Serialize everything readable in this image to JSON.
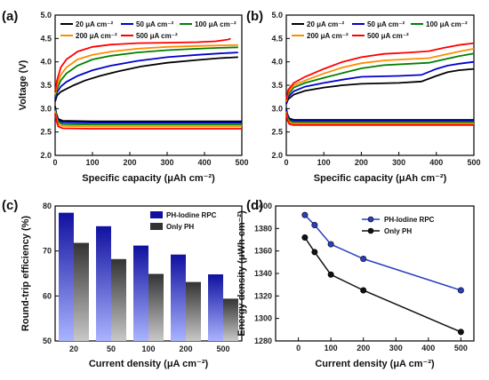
{
  "chart_data": [
    {
      "panel": "(a)",
      "type": "line",
      "xlabel": "Specific capacity (μAh cm⁻²)",
      "ylabel": "Voltage (V)",
      "xlim": [
        0,
        500
      ],
      "ylim": [
        2.0,
        5.0
      ],
      "xticks": [
        "0",
        "100",
        "200",
        "300",
        "400",
        "500"
      ],
      "yticks": [
        "2.0",
        "2.5",
        "3.0",
        "3.5",
        "4.0",
        "4.5",
        "5.0"
      ],
      "legend_placement": "top",
      "series": [
        {
          "name": "20 μA cm⁻²",
          "color": "#000000",
          "charge": [
            [
              0,
              3.15
            ],
            [
              5,
              3.28
            ],
            [
              15,
              3.36
            ],
            [
              30,
              3.42
            ],
            [
              50,
              3.5
            ],
            [
              80,
              3.6
            ],
            [
              120,
              3.7
            ],
            [
              170,
              3.8
            ],
            [
              230,
              3.9
            ],
            [
              300,
              3.98
            ],
            [
              380,
              4.04
            ],
            [
              440,
              4.08
            ],
            [
              490,
              4.1
            ]
          ],
          "discharge": [
            [
              0,
              3.05
            ],
            [
              3,
              2.9
            ],
            [
              8,
              2.78
            ],
            [
              20,
              2.74
            ],
            [
              100,
              2.73
            ],
            [
              300,
              2.73
            ],
            [
              500,
              2.73
            ]
          ]
        },
        {
          "name": "50 μA cm⁻²",
          "color": "#0000cc",
          "charge": [
            [
              0,
              3.2
            ],
            [
              5,
              3.35
            ],
            [
              15,
              3.47
            ],
            [
              30,
              3.57
            ],
            [
              60,
              3.7
            ],
            [
              100,
              3.82
            ],
            [
              150,
              3.92
            ],
            [
              220,
              4.02
            ],
            [
              300,
              4.1
            ],
            [
              380,
              4.15
            ],
            [
              440,
              4.18
            ],
            [
              490,
              4.2
            ]
          ],
          "discharge": [
            [
              0,
              3.0
            ],
            [
              3,
              2.88
            ],
            [
              8,
              2.75
            ],
            [
              20,
              2.71
            ],
            [
              100,
              2.7
            ],
            [
              300,
              2.7
            ],
            [
              500,
              2.7
            ]
          ]
        },
        {
          "name": "100 μA cm⁻²",
          "color": "#008000",
          "charge": [
            [
              0,
              3.25
            ],
            [
              5,
              3.42
            ],
            [
              15,
              3.6
            ],
            [
              30,
              3.75
            ],
            [
              60,
              3.92
            ],
            [
              100,
              4.05
            ],
            [
              150,
              4.13
            ],
            [
              220,
              4.2
            ],
            [
              300,
              4.25
            ],
            [
              380,
              4.28
            ],
            [
              440,
              4.3
            ],
            [
              490,
              4.31
            ]
          ],
          "discharge": [
            [
              0,
              2.98
            ],
            [
              3,
              2.85
            ],
            [
              8,
              2.72
            ],
            [
              20,
              2.67
            ],
            [
              100,
              2.66
            ],
            [
              300,
              2.66
            ],
            [
              500,
              2.66
            ]
          ]
        },
        {
          "name": "200 μA cm⁻²",
          "color": "#ff8c00",
          "charge": [
            [
              0,
              3.3
            ],
            [
              5,
              3.5
            ],
            [
              15,
              3.72
            ],
            [
              30,
              3.88
            ],
            [
              60,
              4.05
            ],
            [
              100,
              4.15
            ],
            [
              150,
              4.22
            ],
            [
              220,
              4.28
            ],
            [
              300,
              4.32
            ],
            [
              380,
              4.34
            ],
            [
              440,
              4.35
            ],
            [
              490,
              4.36
            ]
          ],
          "discharge": [
            [
              0,
              2.95
            ],
            [
              3,
              2.8
            ],
            [
              8,
              2.67
            ],
            [
              20,
              2.63
            ],
            [
              100,
              2.62
            ],
            [
              300,
              2.62
            ],
            [
              500,
              2.62
            ]
          ]
        },
        {
          "name": "500 μA cm⁻²",
          "color": "#ff0000",
          "charge": [
            [
              0,
              3.35
            ],
            [
              5,
              3.6
            ],
            [
              15,
              3.88
            ],
            [
              30,
              4.05
            ],
            [
              60,
              4.22
            ],
            [
              100,
              4.32
            ],
            [
              150,
              4.37
            ],
            [
              220,
              4.4
            ],
            [
              300,
              4.41
            ],
            [
              380,
              4.42
            ],
            [
              430,
              4.44
            ],
            [
              465,
              4.48
            ],
            [
              470,
              4.5
            ]
          ],
          "discharge": [
            [
              0,
              2.9
            ],
            [
              3,
              2.75
            ],
            [
              8,
              2.62
            ],
            [
              20,
              2.58
            ],
            [
              100,
              2.57
            ],
            [
              300,
              2.57
            ],
            [
              500,
              2.57
            ]
          ]
        }
      ]
    },
    {
      "panel": "(b)",
      "type": "line",
      "xlabel": "Specific capacity (μAh cm⁻²)",
      "ylabel": "",
      "xlim": [
        0,
        500
      ],
      "ylim": [
        2.0,
        5.0
      ],
      "xticks": [
        "0",
        "100",
        "200",
        "300",
        "400",
        "500"
      ],
      "yticks": [
        "2.0",
        "2.5",
        "3.0",
        "3.5",
        "4.0",
        "4.5",
        "5.0"
      ],
      "legend_placement": "top",
      "series": [
        {
          "name": "20 μA cm⁻²",
          "color": "#000000",
          "charge": [
            [
              0,
              3.1
            ],
            [
              5,
              3.2
            ],
            [
              20,
              3.3
            ],
            [
              50,
              3.38
            ],
            [
              100,
              3.45
            ],
            [
              150,
              3.5
            ],
            [
              200,
              3.53
            ],
            [
              300,
              3.55
            ],
            [
              360,
              3.58
            ],
            [
              400,
              3.7
            ],
            [
              430,
              3.78
            ],
            [
              460,
              3.82
            ],
            [
              500,
              3.85
            ]
          ],
          "discharge": [
            [
              0,
              3.0
            ],
            [
              3,
              2.88
            ],
            [
              8,
              2.79
            ],
            [
              20,
              2.76
            ],
            [
              100,
              2.76
            ],
            [
              300,
              2.76
            ],
            [
              500,
              2.76
            ]
          ]
        },
        {
          "name": "50 μA cm⁻²",
          "color": "#0000cc",
          "charge": [
            [
              0,
              3.12
            ],
            [
              5,
              3.25
            ],
            [
              20,
              3.37
            ],
            [
              50,
              3.47
            ],
            [
              100,
              3.55
            ],
            [
              150,
              3.62
            ],
            [
              200,
              3.68
            ],
            [
              300,
              3.7
            ],
            [
              360,
              3.72
            ],
            [
              400,
              3.85
            ],
            [
              430,
              3.92
            ],
            [
              460,
              3.96
            ],
            [
              500,
              4.0
            ]
          ],
          "discharge": [
            [
              0,
              2.98
            ],
            [
              3,
              2.85
            ],
            [
              8,
              2.77
            ],
            [
              20,
              2.74
            ],
            [
              100,
              2.74
            ],
            [
              300,
              2.74
            ],
            [
              500,
              2.74
            ]
          ]
        },
        {
          "name": "100 μA cm⁻²",
          "color": "#008000",
          "charge": [
            [
              0,
              3.14
            ],
            [
              5,
              3.3
            ],
            [
              20,
              3.45
            ],
            [
              50,
              3.55
            ],
            [
              100,
              3.66
            ],
            [
              150,
              3.76
            ],
            [
              200,
              3.86
            ],
            [
              260,
              3.93
            ],
            [
              330,
              3.96
            ],
            [
              380,
              3.98
            ],
            [
              420,
              4.05
            ],
            [
              460,
              4.12
            ],
            [
              500,
              4.18
            ]
          ],
          "discharge": [
            [
              0,
              2.95
            ],
            [
              3,
              2.82
            ],
            [
              8,
              2.74
            ],
            [
              20,
              2.71
            ],
            [
              100,
              2.71
            ],
            [
              300,
              2.71
            ],
            [
              500,
              2.71
            ]
          ]
        },
        {
          "name": "200 μA cm⁻²",
          "color": "#ff8c00",
          "charge": [
            [
              0,
              3.16
            ],
            [
              5,
              3.35
            ],
            [
              20,
              3.5
            ],
            [
              50,
              3.6
            ],
            [
              100,
              3.75
            ],
            [
              150,
              3.88
            ],
            [
              200,
              3.97
            ],
            [
              260,
              4.03
            ],
            [
              330,
              4.06
            ],
            [
              380,
              4.08
            ],
            [
              420,
              4.15
            ],
            [
              460,
              4.22
            ],
            [
              500,
              4.28
            ]
          ],
          "discharge": [
            [
              0,
              2.92
            ],
            [
              3,
              2.78
            ],
            [
              8,
              2.7
            ],
            [
              20,
              2.68
            ],
            [
              100,
              2.68
            ],
            [
              300,
              2.68
            ],
            [
              500,
              2.68
            ]
          ]
        },
        {
          "name": "500 μA cm⁻²",
          "color": "#ff0000",
          "charge": [
            [
              0,
              3.18
            ],
            [
              5,
              3.4
            ],
            [
              20,
              3.55
            ],
            [
              50,
              3.68
            ],
            [
              100,
              3.85
            ],
            [
              150,
              4.0
            ],
            [
              200,
              4.1
            ],
            [
              260,
              4.17
            ],
            [
              330,
              4.2
            ],
            [
              380,
              4.23
            ],
            [
              420,
              4.3
            ],
            [
              460,
              4.36
            ],
            [
              500,
              4.4
            ]
          ],
          "discharge": [
            [
              0,
              2.9
            ],
            [
              3,
              2.75
            ],
            [
              8,
              2.67
            ],
            [
              20,
              2.65
            ],
            [
              100,
              2.65
            ],
            [
              300,
              2.65
            ],
            [
              500,
              2.65
            ]
          ]
        }
      ]
    },
    {
      "panel": "(c)",
      "type": "bar",
      "xlabel": "Current density (μA cm⁻²)",
      "ylabel": "Round-trip efficiency (%)",
      "categories": [
        "20",
        "50",
        "100",
        "200",
        "500"
      ],
      "ylim": [
        50,
        80
      ],
      "yticks": [
        "50",
        "60",
        "70",
        "80"
      ],
      "legend_placement": "top-right",
      "series": [
        {
          "name": "PH-Iodine RPC",
          "color": "#1010a0",
          "values": [
            78.5,
            75.5,
            71.2,
            69.2,
            64.8
          ]
        },
        {
          "name": "Only PH",
          "color": "#333333",
          "values": [
            71.8,
            68.2,
            64.9,
            63.1,
            59.4
          ]
        }
      ]
    },
    {
      "panel": "(d)",
      "type": "line",
      "xlabel": "Current density (μA cm⁻²)",
      "ylabel": "Energy density (μWh cm⁻²)",
      "xlim": [
        -70,
        540
      ],
      "ylim": [
        1280,
        1400
      ],
      "xticks": [
        "0",
        "100",
        "200",
        "300",
        "400",
        "500"
      ],
      "yticks": [
        "1280",
        "1300",
        "1320",
        "1340",
        "1360",
        "1380",
        "1400"
      ],
      "legend_placement": "top-right",
      "series": [
        {
          "name": "PH-Iodine RPC",
          "color": "#2a3fbf",
          "x": [
            20,
            50,
            100,
            200,
            500
          ],
          "values": [
            1392,
            1383,
            1366,
            1353,
            1325
          ]
        },
        {
          "name": "Only PH",
          "color": "#111111",
          "x": [
            20,
            50,
            100,
            200,
            500
          ],
          "values": [
            1372,
            1359,
            1339,
            1325,
            1288
          ]
        }
      ]
    }
  ]
}
